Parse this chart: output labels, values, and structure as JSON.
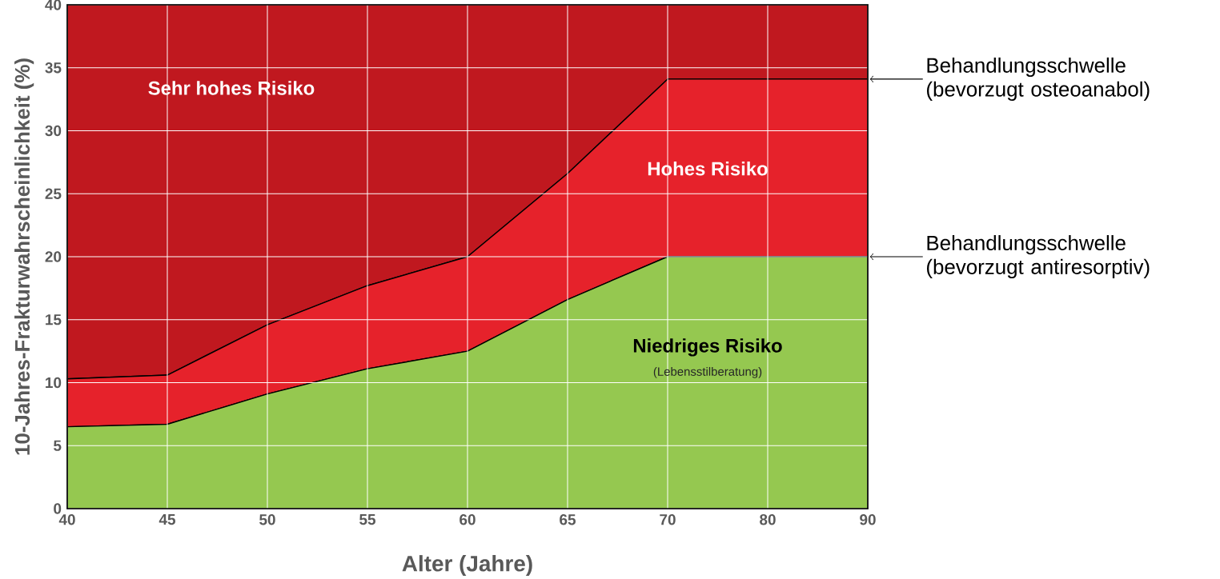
{
  "chart_data": {
    "type": "area",
    "stacked": true,
    "xlabel": "Alter (Jahre)",
    "ylabel": "10-Jahres-Frakturwahrscheinlichkeit (%)",
    "categories": [
      "40",
      "45",
      "50",
      "55",
      "60",
      "65",
      "70",
      "80",
      "90"
    ],
    "ylim": [
      0,
      40
    ],
    "yticks": [
      0,
      5,
      10,
      15,
      20,
      25,
      30,
      35,
      40
    ],
    "grid": true,
    "series": [
      {
        "name": "Niedriges Risiko",
        "color": "#95c850",
        "values": [
          6.5,
          6.7,
          9.1,
          11.1,
          12.5,
          16.6,
          20,
          20,
          20
        ]
      },
      {
        "name": "Hohes Risiko",
        "color": "#e6222b",
        "values": [
          3.8,
          3.9,
          5.5,
          6.6,
          7.5,
          10,
          14.1,
          14.1,
          14.1
        ]
      },
      {
        "name": "Sehr hohes Risiko",
        "color": "#c0181f",
        "values": [
          29.7,
          29.4,
          25.4,
          22.3,
          20,
          13.4,
          5.9,
          5.9,
          5.9
        ]
      }
    ],
    "annotations": [
      "(Lebensstilberatung)",
      {
        "text": "Behandlungsschwelle (bevorzugt osteoanabol)",
        "x": "90",
        "y": 34.1
      },
      {
        "text": "Behandlungsschwelle (bevorzugt antiresorptiv)",
        "x": "90",
        "y": 20
      }
    ]
  }
}
